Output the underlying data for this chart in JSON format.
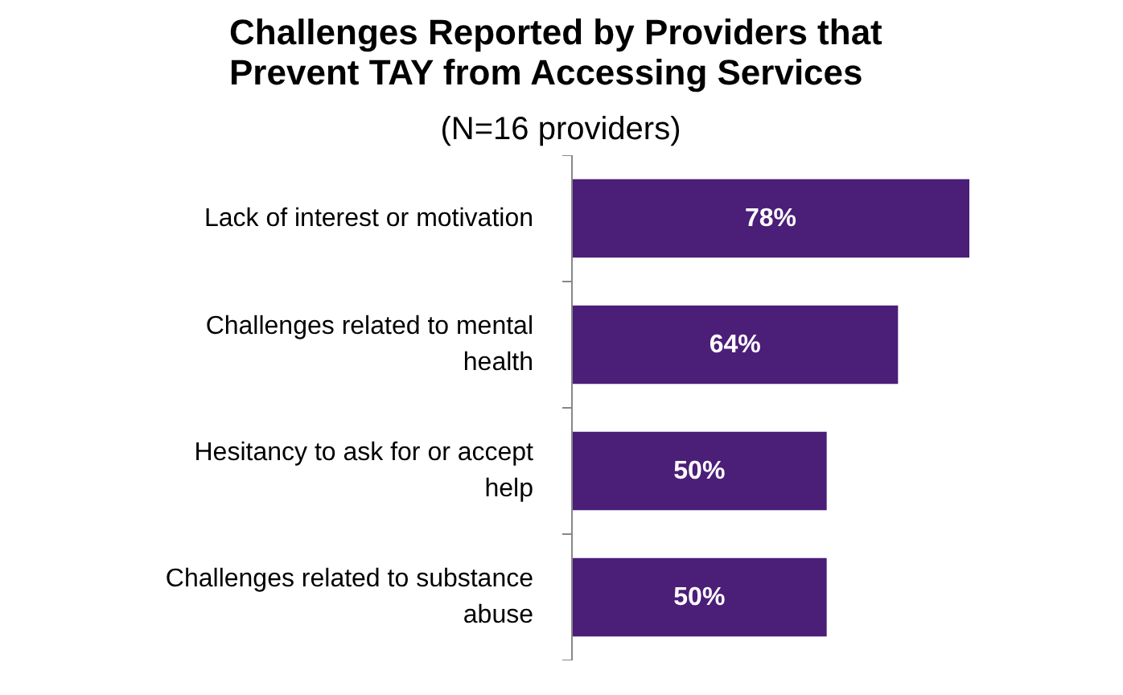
{
  "chart_data": {
    "type": "bar",
    "orientation": "horizontal",
    "title": "Challenges Reported by Providers  that\nPrevent TAY from Accessing Services",
    "subtitle": "(N=16 providers)",
    "categories": [
      "Lack of interest or motivation",
      "Challenges related to mental\nhealth",
      "Hesitancy to ask for or accept\nhelp",
      "Challenges related to substance\nabuse"
    ],
    "values": [
      78,
      64,
      50,
      50
    ],
    "value_labels": [
      "78%",
      "64%",
      "50%",
      "50%"
    ],
    "color": "#4b1e78"
  }
}
